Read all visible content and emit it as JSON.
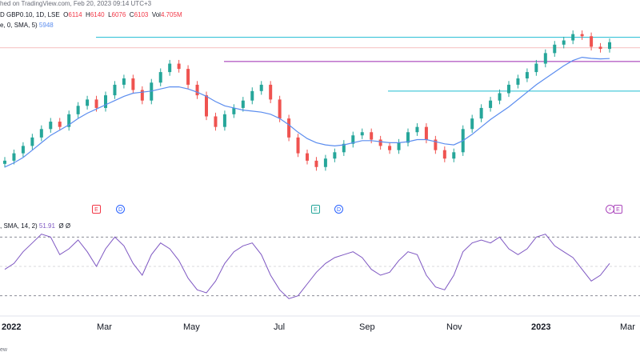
{
  "header": {
    "published": "hed on TradingView.com, Feb 20, 2023 09:14 UTC+3",
    "symbol": "D GBP0.10, 1D, LSE",
    "o_label": "O",
    "o_val": "6114",
    "h_label": "H",
    "h_val": "6140",
    "l_label": "L",
    "l_val": "6076",
    "c_label": "C",
    "c_val": "6103",
    "vol_label": "Vol",
    "vol_val": "4.705M",
    "ma_label": "e, 0, SMA, 5)",
    "ma_val": "5948"
  },
  "rsi_header": {
    "label": ", SMA, 14, 2)",
    "value": "51.91",
    "extra": "Ø  Ø"
  },
  "footer": "ew",
  "colors": {
    "up": "#26a69a",
    "down": "#ef5350",
    "ma": "#5b8def",
    "rsi": "#7e57c2",
    "cyan": "#1fbcd2",
    "magenta": "#9c27b0",
    "red_line": "#ef9a9a"
  },
  "events": [
    {
      "type": "E",
      "style": "red",
      "text": "E"
    },
    {
      "type": "D",
      "text": "D"
    },
    {
      "type": "E",
      "style": "green",
      "text": "E"
    },
    {
      "type": "D",
      "text": "D"
    },
    {
      "type": "S",
      "text": "⚡"
    },
    {
      "type": "E",
      "style": "purple",
      "text": "E"
    }
  ],
  "chart_data": {
    "type": "line",
    "x_labels": [
      "2022",
      "Mar",
      "May",
      "Jul",
      "Sep",
      "Nov",
      "2023",
      "Mar"
    ],
    "price_close": [
      4980,
      5050,
      5120,
      5200,
      5280,
      5350,
      5300,
      5420,
      5500,
      5560,
      5480,
      5600,
      5700,
      5760,
      5650,
      5550,
      5720,
      5820,
      5900,
      5850,
      5700,
      5600,
      5400,
      5300,
      5420,
      5480,
      5550,
      5640,
      5700,
      5560,
      5380,
      5200,
      5050,
      4980,
      4920,
      5000,
      5060,
      5140,
      5220,
      5250,
      5180,
      5120,
      5080,
      5150,
      5250,
      5300,
      5180,
      5080,
      5000,
      5060,
      5280,
      5380,
      5480,
      5550,
      5620,
      5700,
      5760,
      5820,
      5900,
      6000,
      6080,
      6120,
      6180,
      6160,
      6060,
      6040,
      6103
    ],
    "ma": [
      4920,
      4960,
      5010,
      5080,
      5150,
      5220,
      5270,
      5320,
      5380,
      5430,
      5470,
      5510,
      5550,
      5590,
      5620,
      5630,
      5640,
      5660,
      5680,
      5680,
      5660,
      5630,
      5590,
      5540,
      5500,
      5480,
      5460,
      5450,
      5440,
      5420,
      5380,
      5320,
      5250,
      5190,
      5150,
      5130,
      5120,
      5130,
      5150,
      5170,
      5170,
      5160,
      5150,
      5150,
      5160,
      5180,
      5180,
      5160,
      5140,
      5130,
      5170,
      5230,
      5300,
      5370,
      5430,
      5490,
      5560,
      5630,
      5700,
      5760,
      5820,
      5880,
      5930,
      5960,
      5950,
      5945,
      5948
    ],
    "levels": [
      {
        "name": "resistance-top",
        "value": 6150
      },
      {
        "name": "resistance-mid",
        "value": 5920
      },
      {
        "name": "support-level",
        "value": 5640
      }
    ],
    "rsi": [
      48,
      52,
      60,
      66,
      72,
      70,
      58,
      62,
      68,
      60,
      50,
      62,
      70,
      64,
      52,
      44,
      58,
      66,
      62,
      54,
      42,
      34,
      32,
      40,
      52,
      60,
      64,
      66,
      58,
      44,
      34,
      28,
      30,
      38,
      46,
      52,
      56,
      58,
      60,
      56,
      48,
      44,
      46,
      54,
      60,
      58,
      44,
      36,
      34,
      44,
      60,
      66,
      68,
      66,
      70,
      62,
      58,
      62,
      70,
      72,
      64,
      60,
      56,
      48,
      40,
      44,
      52
    ],
    "rsi_levels": [
      70,
      50,
      30
    ]
  }
}
